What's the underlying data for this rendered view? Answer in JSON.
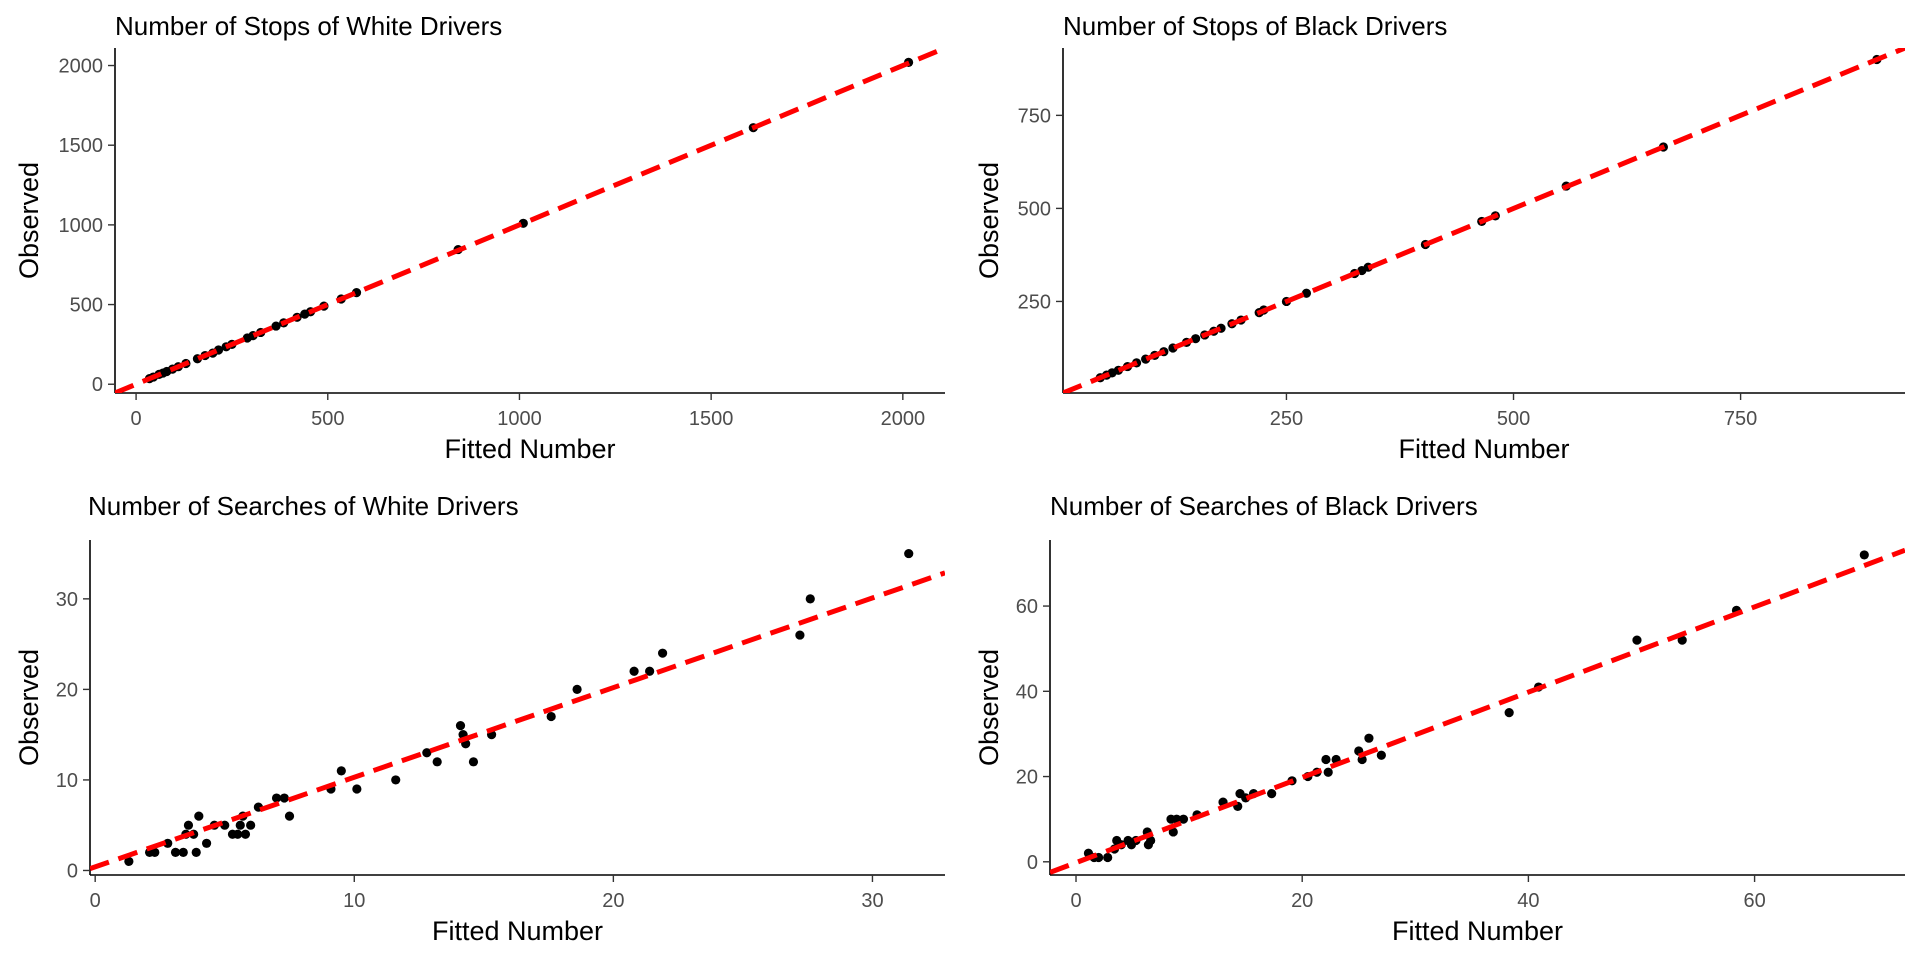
{
  "chart_data": [
    {
      "type": "scatter",
      "title": "Number of Stops of White Drivers",
      "xlabel": "Fitted Number",
      "ylabel": "Observed",
      "xlim": [
        -55,
        2110
      ],
      "ylim": [
        -55,
        2110
      ],
      "xticks": [
        0,
        500,
        1000,
        1500,
        2000
      ],
      "xtick_labels": [
        "0",
        "500",
        "1000",
        "1500",
        "2000"
      ],
      "yticks": [
        0,
        500,
        1000,
        1500,
        2000
      ],
      "ytick_labels": [
        "0",
        "500",
        "1000",
        "1500",
        "2000"
      ],
      "grid": false,
      "reference_line": {
        "style": "dashed",
        "color": "#ff0000",
        "intercept": 0,
        "slope": 1
      },
      "points": {
        "color": "#000000",
        "x": [
          35,
          45,
          60,
          70,
          80,
          95,
          110,
          130,
          160,
          180,
          200,
          215,
          235,
          250,
          290,
          305,
          325,
          365,
          385,
          420,
          440,
          455,
          490,
          535,
          575,
          840,
          1010,
          1610,
          2015
        ],
        "y": [
          35,
          45,
          62,
          70,
          80,
          95,
          110,
          130,
          160,
          180,
          195,
          215,
          235,
          250,
          290,
          305,
          325,
          365,
          385,
          420,
          440,
          455,
          490,
          535,
          575,
          845,
          1010,
          1610,
          2020
        ]
      }
    },
    {
      "type": "scatter",
      "title": "Number of Stops of Black Drivers",
      "xlabel": "Fitted Number",
      "ylabel": "Observed",
      "xlim": [
        4,
        931
      ],
      "ylim": [
        4,
        931
      ],
      "xticks": [
        250,
        500,
        750
      ],
      "xtick_labels": [
        "250",
        "500",
        "750"
      ],
      "yticks": [
        250,
        500,
        750
      ],
      "ytick_labels": [
        "250",
        "500",
        "750"
      ],
      "grid": false,
      "reference_line": {
        "style": "dashed",
        "color": "#ff0000",
        "intercept": 0,
        "slope": 1
      },
      "points": {
        "color": "#000000",
        "x": [
          45,
          52,
          58,
          65,
          75,
          85,
          95,
          105,
          115,
          125,
          140,
          150,
          160,
          170,
          178,
          190,
          200,
          220,
          225,
          250,
          272,
          325,
          333,
          340,
          403,
          465,
          480,
          558,
          665,
          900
        ],
        "y": [
          45,
          52,
          58,
          65,
          75,
          85,
          95,
          105,
          115,
          125,
          140,
          150,
          160,
          170,
          178,
          190,
          200,
          220,
          227,
          250,
          272,
          325,
          333,
          342,
          403,
          465,
          480,
          560,
          665,
          900
        ]
      }
    },
    {
      "type": "scatter",
      "title": "Number of Searches of White Drivers",
      "xlabel": "Fitted Number",
      "ylabel": "Observed",
      "xlim": [
        -0.2,
        32.8
      ],
      "ylim": [
        -0.5,
        36.5
      ],
      "xticks": [
        0,
        10,
        20,
        30
      ],
      "xtick_labels": [
        "0",
        "10",
        "20",
        "30"
      ],
      "yticks": [
        0,
        10,
        20,
        30
      ],
      "ytick_labels": [
        "0",
        "10",
        "20",
        "30"
      ],
      "grid": false,
      "reference_line": {
        "style": "dashed",
        "color": "#ff0000",
        "intercept": 0.4,
        "slope": 0.99
      },
      "points": {
        "color": "#000000",
        "x": [
          1.3,
          2.1,
          2.3,
          2.8,
          3.1,
          3.4,
          3.5,
          3.6,
          3.8,
          3.9,
          4.0,
          4.3,
          4.6,
          5.0,
          5.3,
          5.5,
          5.6,
          5.7,
          5.8,
          6.0,
          6.3,
          7.0,
          7.3,
          7.5,
          9.1,
          9.5,
          10.1,
          11.6,
          12.8,
          13.2,
          14.1,
          14.2,
          14.3,
          14.6,
          15.3,
          17.6,
          18.6,
          20.8,
          21.4,
          21.9,
          27.2,
          27.6,
          31.4
        ],
        "y": [
          1,
          2,
          2,
          3,
          2,
          2,
          4,
          5,
          4,
          2,
          6,
          3,
          5,
          5,
          4,
          4,
          5,
          6,
          4,
          5,
          7,
          8,
          8,
          6,
          9,
          11,
          9,
          10,
          13,
          12,
          16,
          15,
          14,
          12,
          15,
          17,
          20,
          22,
          22,
          24,
          26,
          30,
          35
        ]
      }
    },
    {
      "type": "scatter",
      "title": "Number of Searches of Black Drivers",
      "xlabel": "Fitted Number",
      "ylabel": "Observed",
      "xlim": [
        -2.3,
        73.3
      ],
      "ylim": [
        -3.1,
        75.5
      ],
      "xticks": [
        0,
        20,
        40,
        60
      ],
      "xtick_labels": [
        "0",
        "20",
        "40",
        "60"
      ],
      "yticks": [
        0,
        20,
        40,
        60
      ],
      "ytick_labels": [
        "0",
        "20",
        "40",
        "60"
      ],
      "grid": false,
      "reference_line": {
        "style": "dashed",
        "color": "#ff0000",
        "intercept": -0.2,
        "slope": 1.0
      },
      "points": {
        "color": "#000000",
        "x": [
          1.1,
          1.6,
          2.0,
          2.8,
          3.4,
          3.6,
          4.0,
          4.6,
          4.9,
          5.3,
          6.3,
          6.6,
          6.4,
          8.4,
          8.6,
          8.9,
          9.5,
          10.7,
          13.0,
          14.3,
          14.5,
          15.0,
          15.7,
          17.3,
          19.1,
          20.5,
          21.3,
          22.1,
          22.3,
          23.0,
          25.0,
          25.3,
          25.9,
          27.0,
          38.3,
          40.9,
          49.6,
          53.6,
          58.4,
          69.7
        ],
        "y": [
          2,
          1,
          1,
          1,
          3,
          5,
          4,
          5,
          4,
          5,
          7,
          5,
          4,
          10,
          7,
          10,
          10,
          11,
          14,
          13,
          16,
          15,
          16,
          16,
          19,
          20,
          21,
          24,
          21,
          24,
          26,
          24,
          29,
          25,
          35,
          41,
          52,
          52,
          59,
          72
        ]
      }
    }
  ]
}
